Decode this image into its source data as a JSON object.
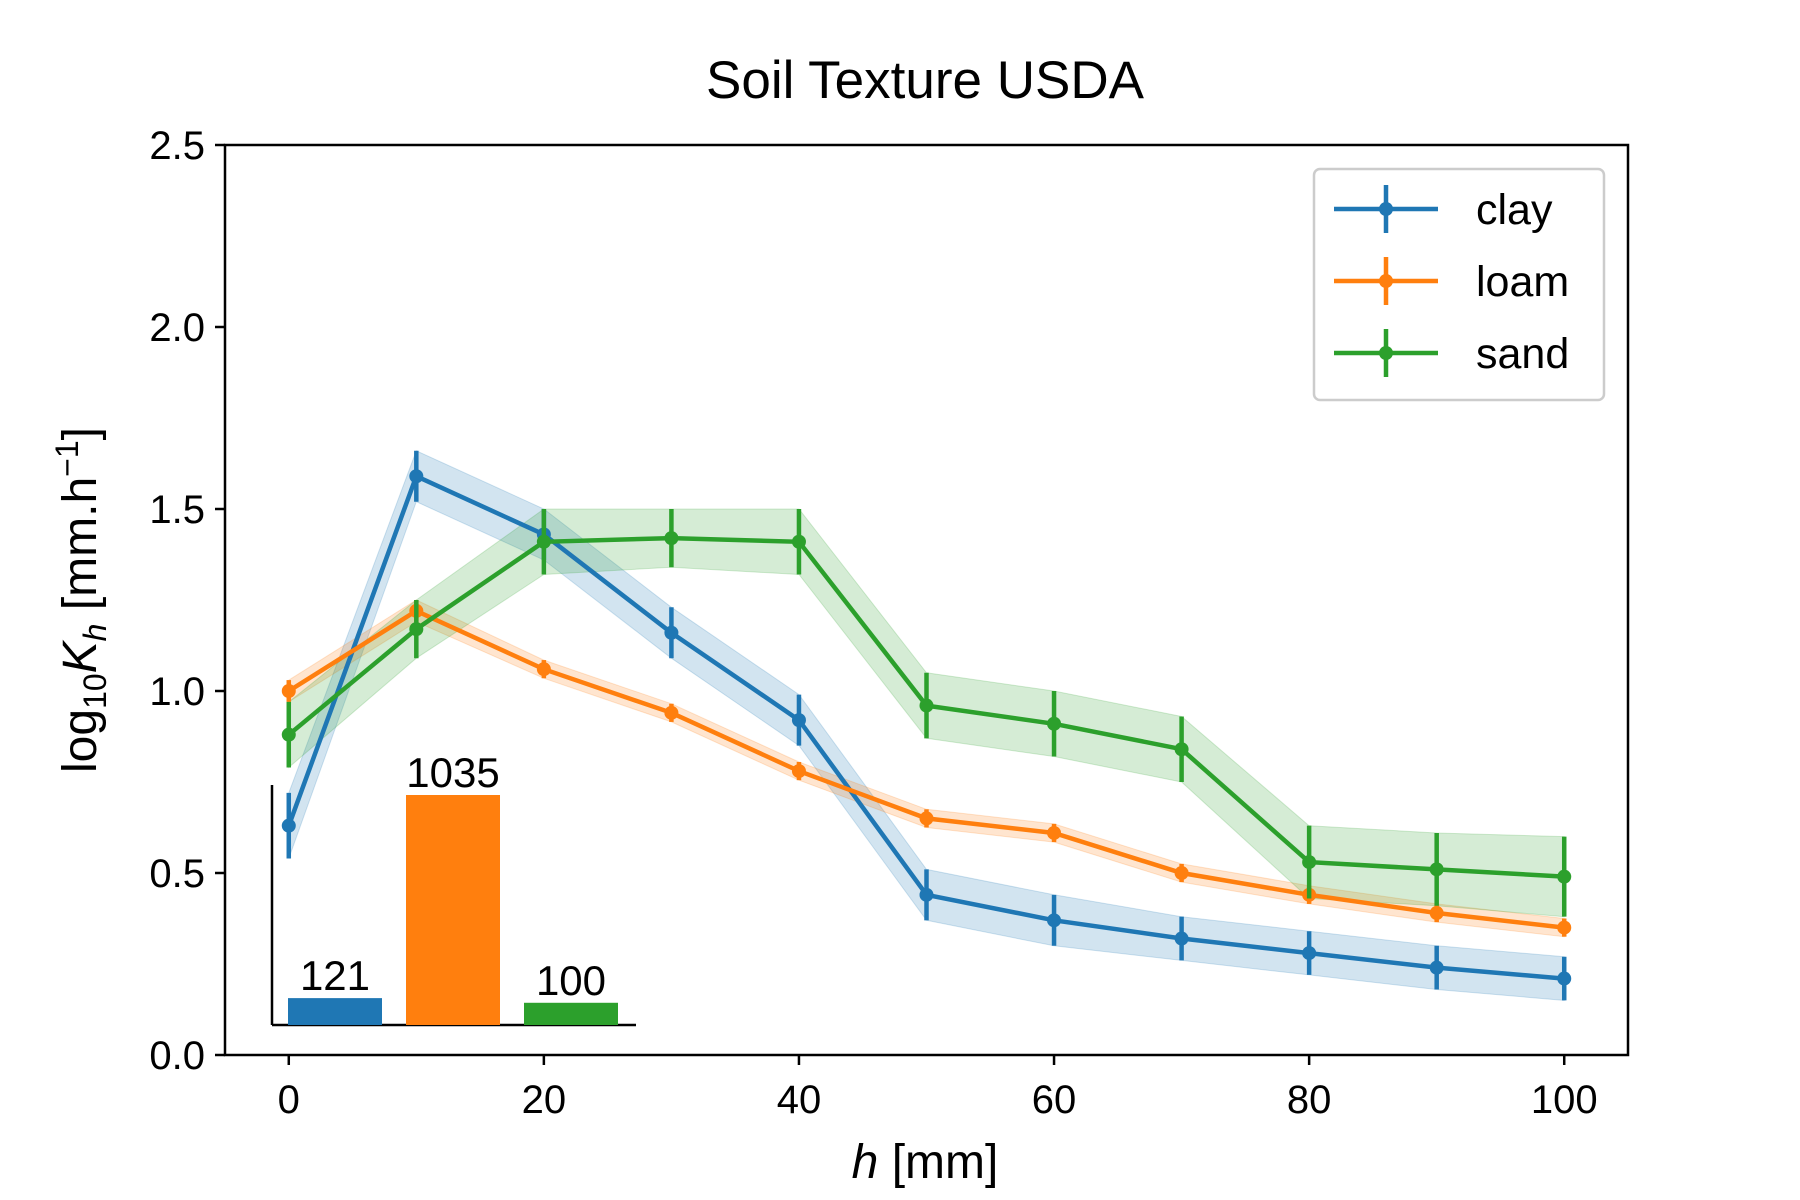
{
  "chart_data": [
    {
      "type": "line",
      "title": "Soil Texture USDA",
      "xlabel": {
        "var": "h",
        "unit": " [mm]"
      },
      "ylabel": {
        "prefix": "log",
        "sub": "10",
        "var": "K",
        "var_sub": "h",
        "unit_open": " [mm.h",
        "sup": "−1",
        "unit_close": "]"
      },
      "x": [
        0,
        10,
        20,
        30,
        40,
        50,
        60,
        70,
        80,
        90,
        100
      ],
      "xlim": [
        -5,
        105
      ],
      "ylim": [
        0.0,
        2.5
      ],
      "x_ticks": [
        "0",
        "20",
        "40",
        "60",
        "80",
        "100"
      ],
      "y_ticks": [
        "0.0",
        "0.5",
        "1.0",
        "1.5",
        "2.0",
        "2.5"
      ],
      "grid": false,
      "legend_position": "top-right",
      "series": [
        {
          "name": "clay",
          "color": "#1f77b4",
          "values": [
            0.63,
            1.59,
            1.43,
            1.16,
            0.92,
            0.44,
            0.37,
            0.32,
            0.28,
            0.24,
            0.21
          ],
          "errors": [
            0.09,
            0.07,
            0.07,
            0.07,
            0.07,
            0.07,
            0.07,
            0.06,
            0.06,
            0.06,
            0.06
          ]
        },
        {
          "name": "loam",
          "color": "#ff7f0e",
          "values": [
            1.0,
            1.22,
            1.06,
            0.94,
            0.78,
            0.65,
            0.61,
            0.5,
            0.44,
            0.39,
            0.35
          ],
          "errors": [
            0.03,
            0.03,
            0.025,
            0.025,
            0.025,
            0.025,
            0.025,
            0.025,
            0.025,
            0.025,
            0.025
          ]
        },
        {
          "name": "sand",
          "color": "#2ca02c",
          "values": [
            0.88,
            1.17,
            1.41,
            1.42,
            1.41,
            0.96,
            0.91,
            0.84,
            0.53,
            0.51,
            0.49
          ],
          "errors": [
            0.09,
            0.08,
            0.09,
            0.08,
            0.09,
            0.09,
            0.09,
            0.09,
            0.1,
            0.1,
            0.11
          ]
        }
      ]
    },
    {
      "type": "bar",
      "categories": [
        "clay",
        "loam",
        "sand"
      ],
      "values": [
        121,
        1035,
        100
      ],
      "labels": [
        "121",
        "1035",
        "100"
      ],
      "colors": [
        "#1f77b4",
        "#ff7f0e",
        "#2ca02c"
      ]
    }
  ]
}
